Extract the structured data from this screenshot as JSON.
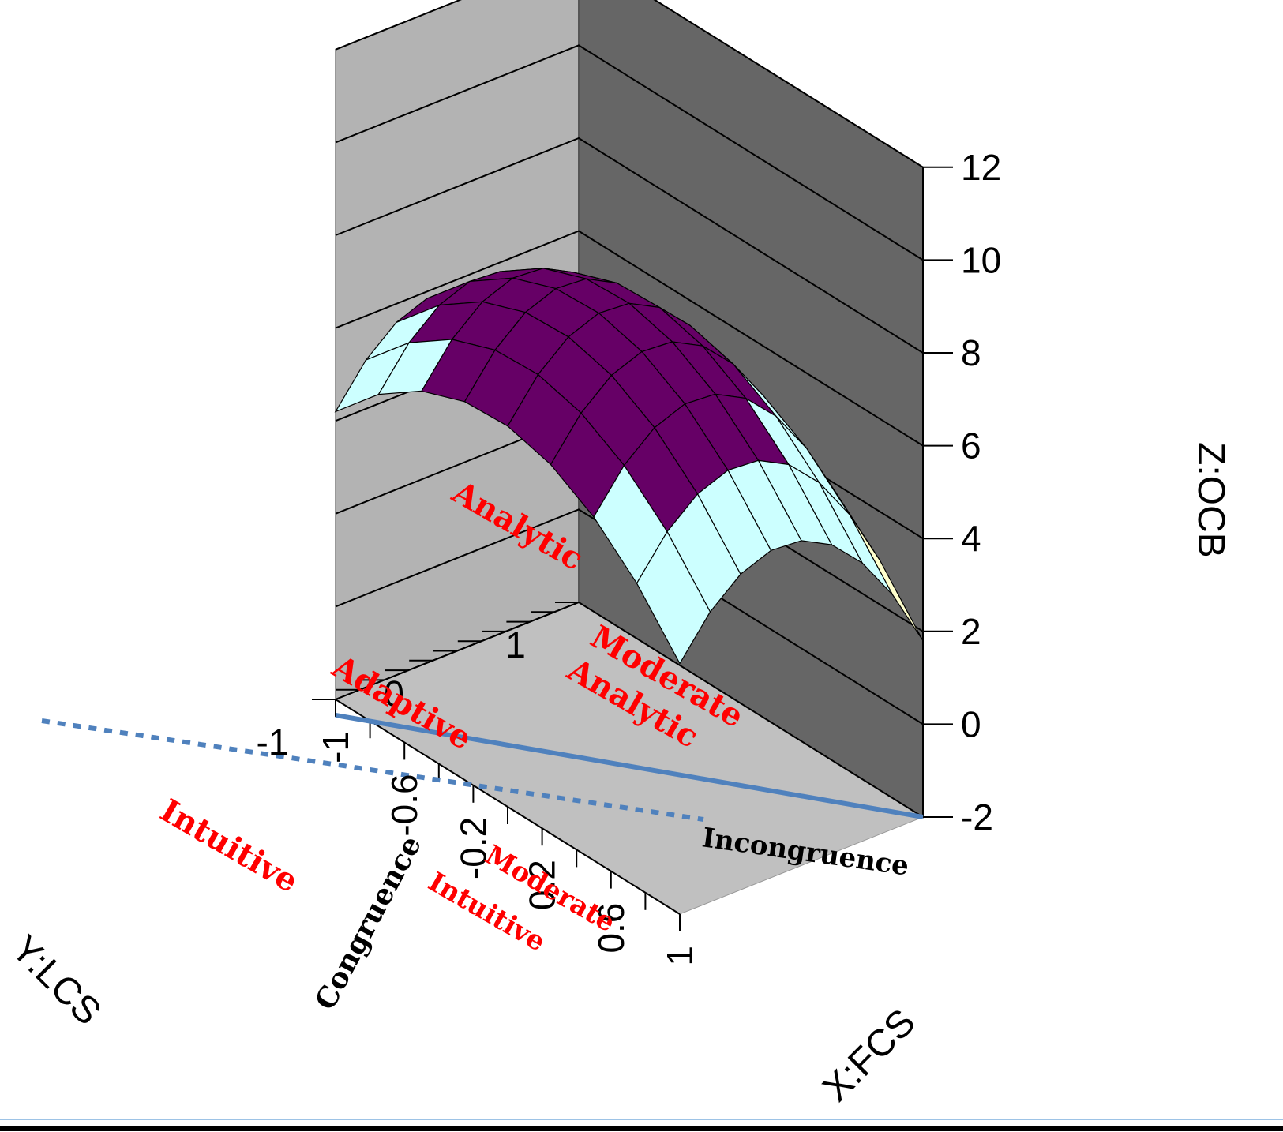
{
  "chart_data": {
    "type": "surface3d",
    "title": "",
    "x_axis": {
      "label": "X:FCS",
      "ticks": [
        -1,
        -0.6,
        -0.2,
        0.2,
        0.6,
        1
      ],
      "range": [
        -1,
        1
      ]
    },
    "y_axis": {
      "label": "Y:LCS",
      "ticks": [
        1,
        0,
        -1
      ],
      "range": [
        -1,
        1
      ]
    },
    "z_axis": {
      "label": "Z:OCB",
      "ticks": [
        -2,
        0,
        2,
        4,
        6,
        8,
        10,
        12
      ],
      "range": [
        -2,
        12
      ]
    },
    "surface": {
      "x": [
        -1,
        -0.75,
        -0.5,
        -0.25,
        0,
        0.25,
        0.5,
        0.75,
        1
      ],
      "y": [
        -1,
        -0.75,
        -0.5,
        -0.25,
        0,
        0.25,
        0.5,
        0.75,
        1
      ],
      "z": [
        [
          4.2,
          5.15,
          5.8,
          6.15,
          6.2,
          5.95,
          5.4,
          4.55,
          3.4
        ],
        [
          5.05,
          6.0,
          6.65,
          7.0,
          7.05,
          6.8,
          6.25,
          5.4,
          4.25
        ],
        [
          5.6,
          6.55,
          7.2,
          7.55,
          7.6,
          7.35,
          6.8,
          5.95,
          4.8
        ],
        [
          5.85,
          6.8,
          7.45,
          7.8,
          7.85,
          7.6,
          7.05,
          6.2,
          5.05
        ],
        [
          5.8,
          6.75,
          7.4,
          7.75,
          7.8,
          7.55,
          7.0,
          6.15,
          5.0
        ],
        [
          5.45,
          6.4,
          7.05,
          7.4,
          7.45,
          7.2,
          6.65,
          5.8,
          4.65
        ],
        [
          4.8,
          5.75,
          6.4,
          6.75,
          6.8,
          6.55,
          6.0,
          5.15,
          4.0
        ],
        [
          3.85,
          4.8,
          5.45,
          5.8,
          5.85,
          5.6,
          5.05,
          4.2,
          3.05
        ],
        [
          2.6,
          3.55,
          4.2,
          4.55,
          4.6,
          4.35,
          3.8,
          2.95,
          1.8
        ]
      ]
    },
    "colors": {
      "band_below_0": "#9999ff",
      "band_0_2": "#993366",
      "band_2_4": "#ffffcc",
      "band_4_6": "#ccffff",
      "band_6_8": "#660066",
      "band_8_10": "#ff8080",
      "band_10_12": "#9999ff",
      "back_wall": "#b3b3b3",
      "side_wall": "#666666",
      "floor": "#c0c0c0",
      "annotation_line": "#4f81bd",
      "region_text": "#ff0000"
    },
    "annotations": {
      "regions": [
        "Analytic",
        "Moderate Analytic",
        "Adaptive",
        "Intuitive",
        "Moderate Intuitive"
      ],
      "lines": [
        "Congruence",
        "Incongruence"
      ]
    },
    "grid": true
  }
}
